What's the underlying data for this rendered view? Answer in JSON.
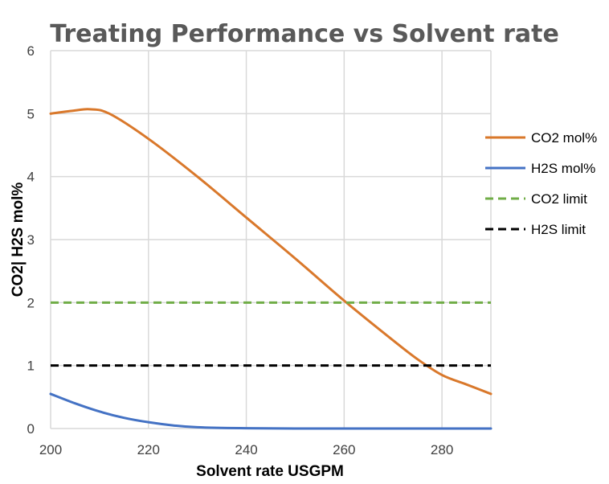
{
  "chart_data": {
    "type": "line",
    "title": "Treating Performance vs Solvent rate",
    "xlabel": "Solvent rate USGPM",
    "ylabel": "CO2| H2S mol%",
    "xlim": [
      200,
      290
    ],
    "ylim": [
      0,
      6
    ],
    "x_ticks": [
      200,
      220,
      240,
      260,
      280
    ],
    "y_ticks": [
      0,
      1,
      2,
      3,
      4,
      5,
      6
    ],
    "x_grid_extra": [
      290
    ],
    "grid": true,
    "legend_position": "right",
    "series": [
      {
        "name": "CO2 mol%",
        "color": "#d9782b",
        "style": "solid",
        "x": [
          200,
          205,
          208,
          212,
          220,
          230,
          240,
          250,
          260,
          270,
          275,
          280,
          285,
          290
        ],
        "y": [
          5.0,
          5.05,
          5.07,
          5.0,
          4.6,
          4.0,
          3.35,
          2.7,
          2.03,
          1.4,
          1.1,
          0.85,
          0.7,
          0.55
        ]
      },
      {
        "name": "H2S mol%",
        "color": "#4472c4",
        "style": "solid",
        "x": [
          200,
          205,
          210,
          215,
          220,
          225,
          230,
          240,
          250,
          260,
          270,
          280,
          290
        ],
        "y": [
          0.55,
          0.4,
          0.27,
          0.17,
          0.1,
          0.05,
          0.02,
          0.005,
          0.0,
          0.0,
          0.0,
          0.0,
          0.0
        ]
      },
      {
        "name": "CO2 limit",
        "color": "#70ad47",
        "style": "dashed",
        "x": [
          200,
          290
        ],
        "y": [
          2,
          2
        ]
      },
      {
        "name": "H2S limit",
        "color": "#000000",
        "style": "dashed",
        "x": [
          200,
          290
        ],
        "y": [
          1,
          1
        ]
      }
    ]
  }
}
